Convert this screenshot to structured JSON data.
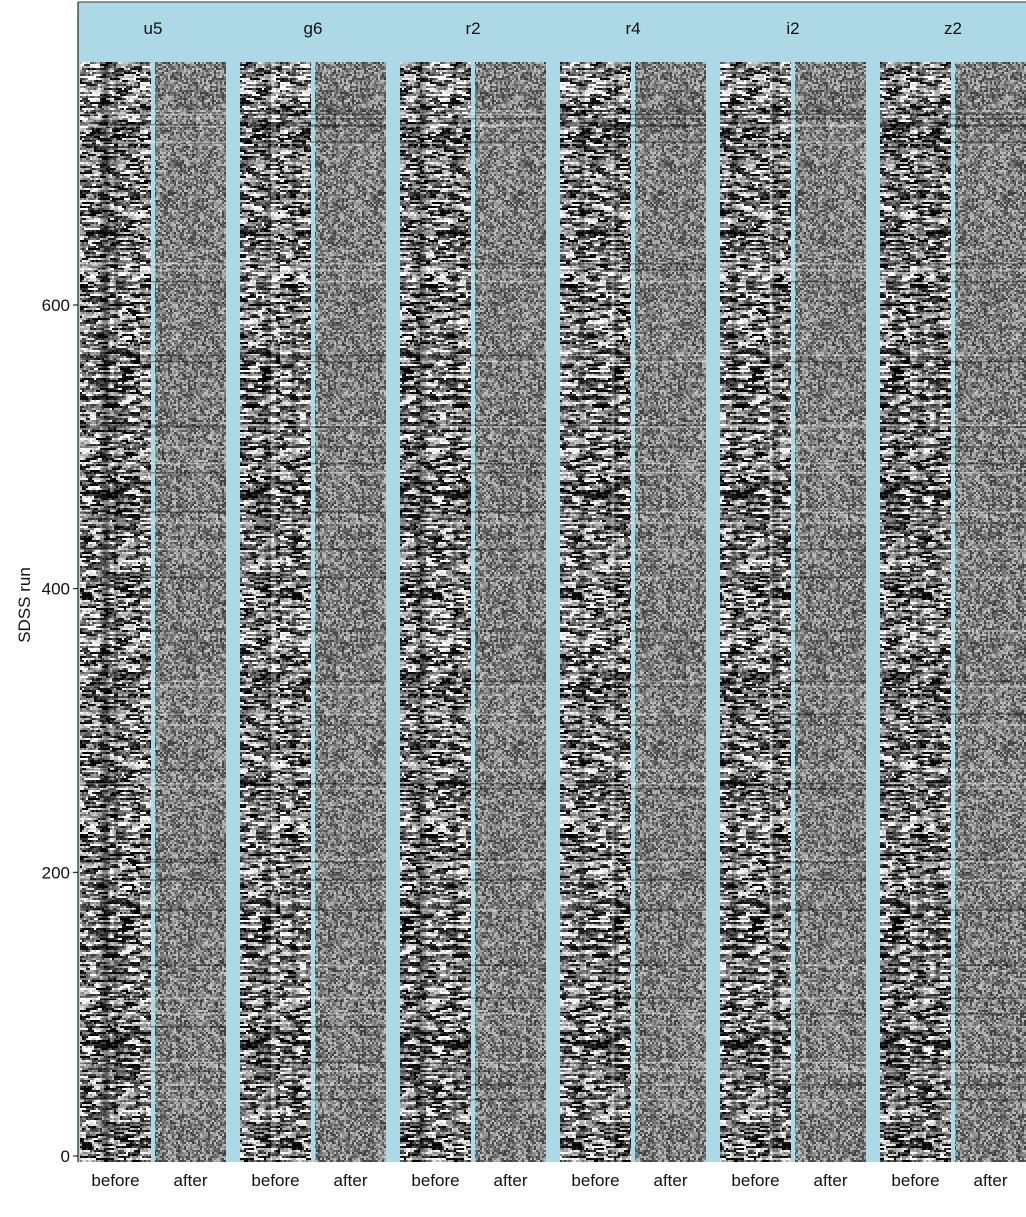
{
  "chart_data": {
    "type": "heatmap",
    "ylabel": "SDSS run",
    "ylim": [
      0,
      750
    ],
    "yticks": [
      0,
      200,
      400,
      600
    ],
    "panels": [
      "u5",
      "g6",
      "r2",
      "r4",
      "i2",
      "z2"
    ],
    "columns": [
      "before",
      "after"
    ],
    "colors": {
      "strip_background": "#add8e6",
      "panel_background": "#add8e6",
      "colormap": [
        "#000000",
        "#ffffff"
      ],
      "axis": "#000000"
    }
  }
}
